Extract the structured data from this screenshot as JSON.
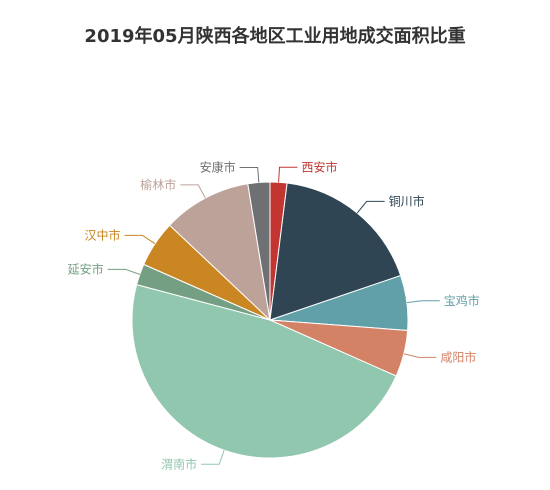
{
  "chart_data": {
    "type": "pie",
    "title": "2019年05月陕西各地区工业用地成交面积比重",
    "slices": [
      {
        "name": "西安市",
        "value": 2.0,
        "color": "#c23531"
      },
      {
        "name": "铜川市",
        "value": 18.0,
        "color": "#2f4554"
      },
      {
        "name": "宝鸡市",
        "value": 6.5,
        "color": "#61a0a8"
      },
      {
        "name": "咸阳市",
        "value": 5.5,
        "color": "#d48265"
      },
      {
        "name": "渭南市",
        "value": 48.0,
        "color": "#91c7ae"
      },
      {
        "name": "延安市",
        "value": 2.5,
        "color": "#749f83"
      },
      {
        "name": "汉中市",
        "value": 5.5,
        "color": "#ca8622"
      },
      {
        "name": "榆林市",
        "value": 10.5,
        "color": "#bda29a"
      },
      {
        "name": "安康市",
        "value": 2.6,
        "color": "#6e7074"
      }
    ]
  }
}
